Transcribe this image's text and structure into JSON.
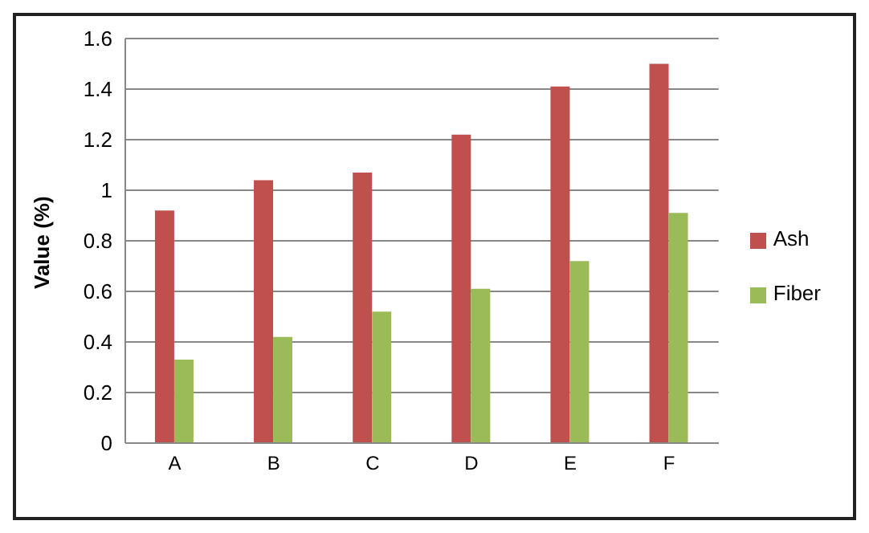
{
  "chart_data": {
    "type": "bar",
    "ylabel": "Value (%)",
    "categories": [
      "A",
      "B",
      "C",
      "D",
      "E",
      "F"
    ],
    "series": [
      {
        "name": "Ash",
        "color": "#c0504d",
        "values": [
          0.92,
          1.04,
          1.07,
          1.22,
          1.41,
          1.5
        ]
      },
      {
        "name": "Fiber",
        "color": "#9bbb59",
        "values": [
          0.33,
          0.42,
          0.52,
          0.61,
          0.72,
          0.91
        ]
      }
    ],
    "ylim": [
      0,
      1.6
    ],
    "yticks": [
      0,
      0.2,
      0.4,
      0.6,
      0.8,
      1,
      1.2,
      1.4,
      1.6
    ],
    "grid": "y",
    "legend": "right"
  }
}
